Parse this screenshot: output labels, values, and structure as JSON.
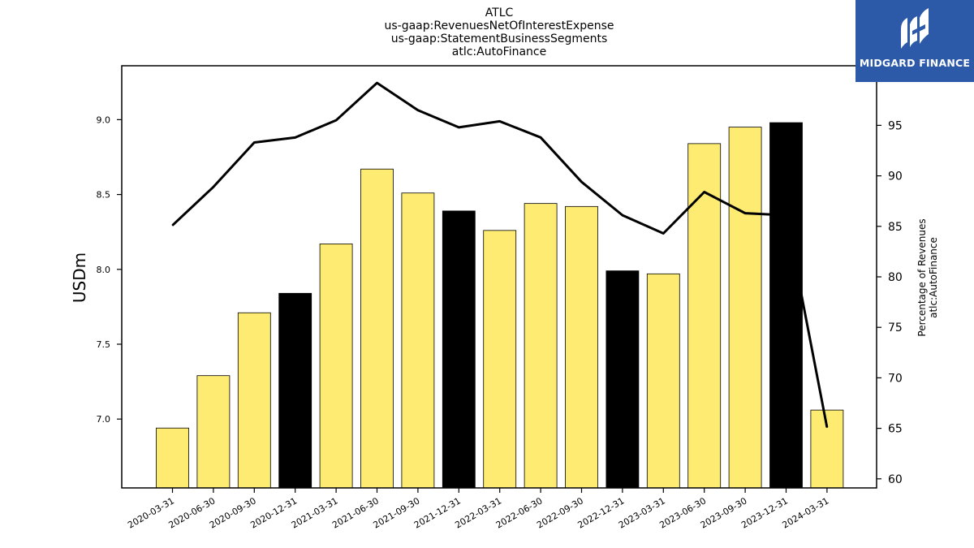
{
  "colors": {
    "bar_default": "#fdeb72",
    "bar_highlight": "#000000",
    "line": "#000000",
    "logo_bg": "#2c5aa8"
  },
  "logo": {
    "text": "MIDGARD FINANCE",
    "icon": "midgard-logo-icon"
  },
  "chart_data": {
    "type": "bar",
    "title_lines": [
      "ATLC",
      "us-gaap:RevenuesNetOfInterestExpense",
      "us-gaap:StatementBusinessSegments",
      "atlc:AutoFinance"
    ],
    "ylabel": "USDm",
    "y2label_lines": [
      "Percentage of Revenues",
      "atlc:AutoFinance"
    ],
    "ylim": [
      6.54,
      9.36
    ],
    "y_ticks": [
      7.0,
      7.5,
      8.0,
      8.5,
      9.0
    ],
    "y_tick_labels": [
      "7.0",
      "7.5",
      "8.0",
      "8.5",
      "9.0"
    ],
    "y2lim": [
      59.1,
      100.9
    ],
    "y2_ticks": [
      60,
      65,
      70,
      75,
      80,
      85,
      90,
      95
    ],
    "y2_tick_labels": [
      "60",
      "65",
      "70",
      "75",
      "80",
      "85",
      "90",
      "95"
    ],
    "categories": [
      "2020-03-31",
      "2020-06-30",
      "2020-09-30",
      "2020-12-31",
      "2021-03-31",
      "2021-06-30",
      "2021-09-30",
      "2021-12-31",
      "2022-03-31",
      "2022-06-30",
      "2022-09-30",
      "2022-12-31",
      "2023-03-31",
      "2023-06-30",
      "2023-09-30",
      "2023-12-31",
      "2024-03-31"
    ],
    "series": [
      {
        "kind": "bar",
        "axis": "left",
        "values": [
          6.94,
          7.29,
          7.71,
          7.84,
          8.17,
          8.67,
          8.51,
          8.39,
          8.26,
          8.44,
          8.42,
          7.99,
          7.97,
          8.84,
          8.95,
          8.98,
          7.06
        ],
        "highlight": [
          false,
          false,
          false,
          true,
          false,
          false,
          false,
          true,
          false,
          false,
          false,
          true,
          false,
          false,
          false,
          true,
          false
        ]
      },
      {
        "kind": "line",
        "axis": "right",
        "values": [
          85.1,
          88.9,
          93.3,
          93.8,
          95.5,
          99.2,
          96.5,
          94.8,
          95.4,
          93.8,
          89.4,
          86.1,
          84.3,
          88.4,
          86.3,
          86.1,
          65.1
        ]
      }
    ]
  }
}
